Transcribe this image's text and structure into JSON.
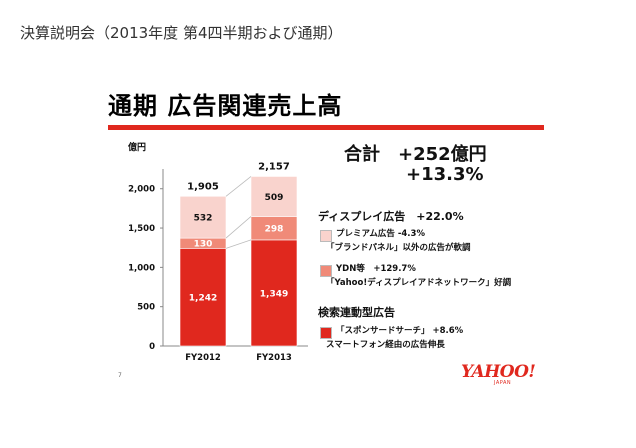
{
  "header": {
    "title": "決算説明会（2013年度 第4四半期および通期）"
  },
  "slide": {
    "title": "通期 広告関連売上高",
    "unit_label": "億円",
    "slide_number": "7",
    "totals": {
      "line1": "合計　+252億円",
      "line2": "+13.3%"
    },
    "sections": [
      {
        "title": "ディスプレイ広告　+22.0%"
      },
      {
        "title": "検索連動型広告"
      }
    ],
    "legend": [
      {
        "line1": "プレミアム広告 -4.3%",
        "line2": "「ブランドパネル」以外の広告が軟調",
        "color": "#f9d3cd"
      },
      {
        "line1": "YDN等　+129.7%",
        "line2": "「Yahoo!ディスプレイアドネットワーク」好調",
        "color": "#f08a78"
      },
      {
        "line1": "「スポンサードサーチ」 +8.6%",
        "line2": "スマートフォン経由の広告伸長",
        "color": "#e0281e"
      }
    ],
    "logo": {
      "main": "YAHOO!",
      "sub": "JAPAN"
    }
  },
  "chart_data": {
    "type": "bar",
    "stacked": true,
    "categories": [
      "FY2012",
      "FY2013"
    ],
    "series": [
      {
        "values": [
          1242,
          1349
        ],
        "color": "#e0281e"
      },
      {
        "values": [
          130,
          298
        ],
        "color": "#f08a78"
      },
      {
        "values": [
          532,
          509
        ],
        "color": "#f9d3cd"
      }
    ],
    "totals": [
      "1,905",
      "2,157"
    ],
    "yticks": [
      "0",
      "500",
      "1,000",
      "1,500",
      "2,000"
    ],
    "ylim": [
      0,
      2200
    ],
    "ylabel": "億円"
  }
}
